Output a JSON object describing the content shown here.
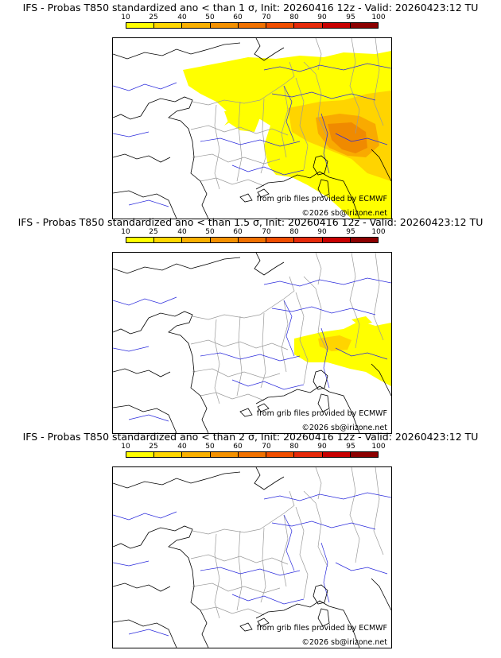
{
  "colors": {
    "scale": [
      "#ffff00",
      "#ffd700",
      "#f9b000",
      "#f49100",
      "#f07100",
      "#f04e00",
      "#e62a0a",
      "#c80000",
      "#8c0000",
      "#5a0000"
    ],
    "prob_1": "#ffff00",
    "prob_2": "#ffd400",
    "prob_3": "#f9aa00",
    "prob_4": "#f08a00",
    "coast": "#000000",
    "border": "#9a9a9a",
    "river": "#2a2adc"
  },
  "scale_ticks": [
    "10",
    "25",
    "40",
    "50",
    "60",
    "70",
    "80",
    "90",
    "95",
    "100"
  ],
  "credit_source": "from grib files provided by ECMWF",
  "credit_copyright": "©2026 sb@irizone.net",
  "panels": [
    {
      "title": "IFS - Probas T850  standardized ano < than 1 σ, Init: 20260416 12z - Valid: 20260423:12 TU"
    },
    {
      "title": "IFS - Probas T850  standardized ano < than 1.5 σ, Init: 20260416 12z - Valid: 20260423:12 TU"
    },
    {
      "title": "IFS - Probas T850  standardized ano < than 2 σ, Init: 20260416 12z - Valid: 20260423:12 TU"
    }
  ]
}
